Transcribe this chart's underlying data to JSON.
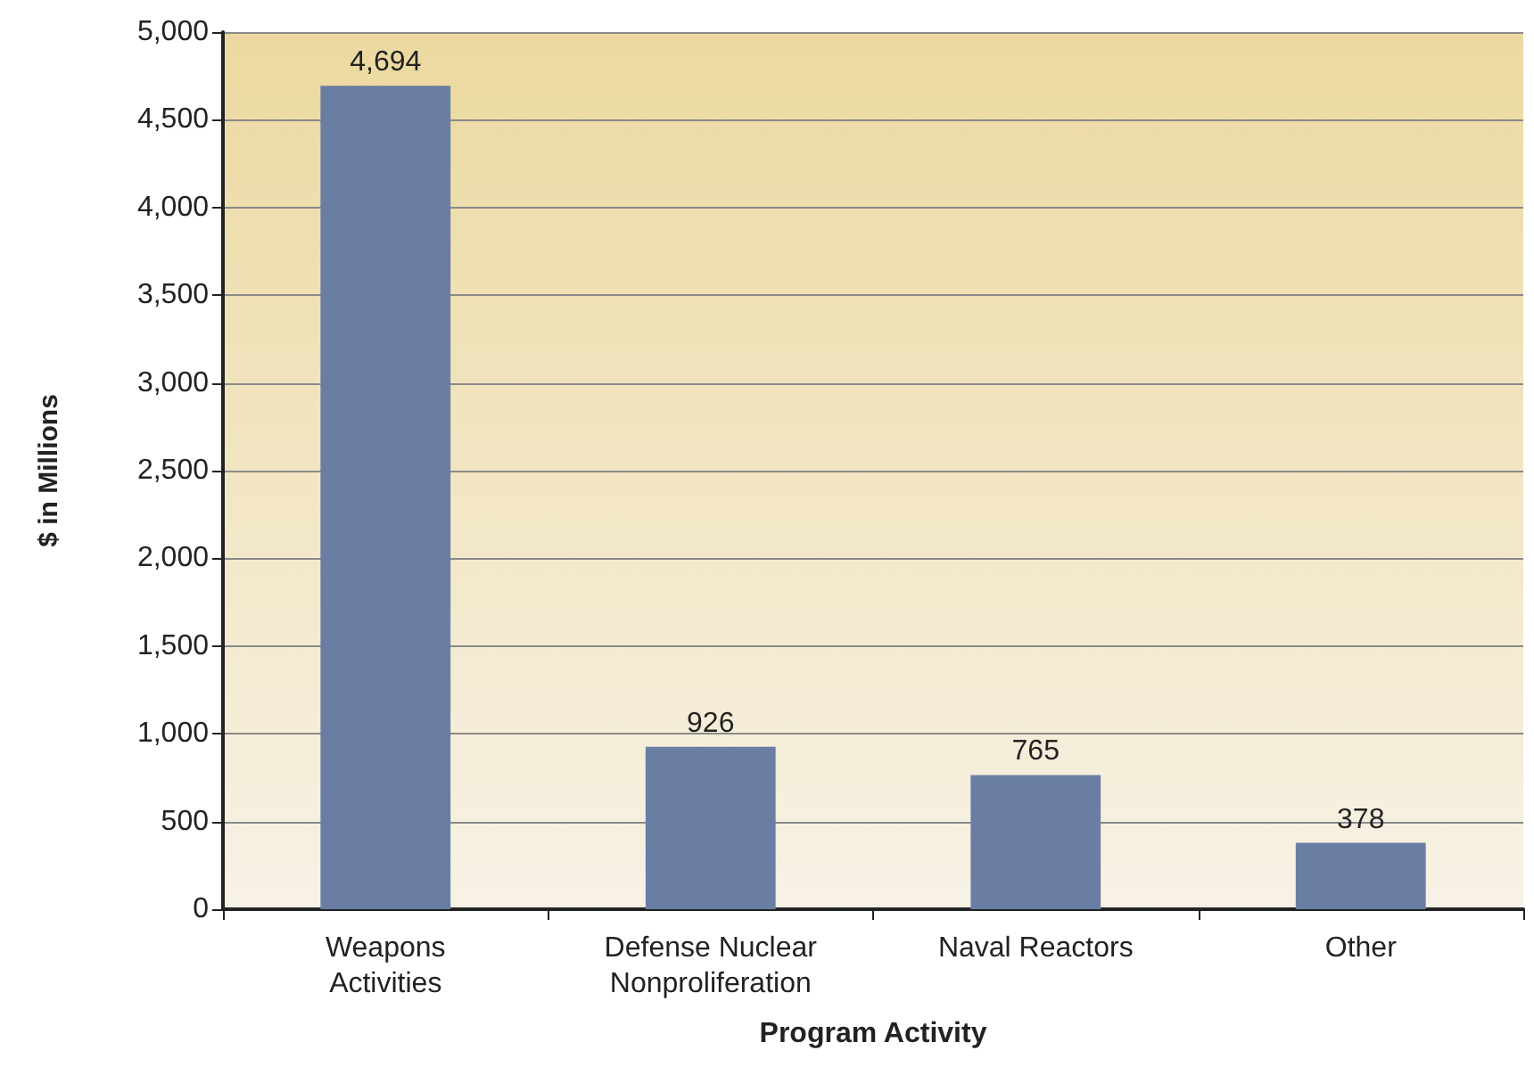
{
  "chart_data": {
    "type": "bar",
    "xlabel": "Program Activity",
    "ylabel": "$ in Millions",
    "categories": [
      "Weapons\nActivities",
      "Defense Nuclear\nNonproliferation",
      "Naval Reactors",
      "Other"
    ],
    "values": [
      4694,
      926,
      765,
      378
    ],
    "value_labels": [
      "4,694",
      "926",
      "765",
      "378"
    ],
    "color": "#6a7ea3",
    "ylim": [
      0,
      5000
    ],
    "yticks": [
      0,
      500,
      {
        "value": 1000,
        "label": "1,000"
      },
      {
        "value": 1500,
        "label": "1,500"
      },
      {
        "value": 2000,
        "label": "2,000"
      },
      {
        "value": 2500,
        "label": "2,500"
      },
      {
        "value": 3000,
        "label": "3,000"
      },
      {
        "value": 3500,
        "label": "3,500"
      },
      {
        "value": 4000,
        "label": "4,000"
      },
      {
        "value": 4500,
        "label": "4,500"
      },
      {
        "value": 5000,
        "label": "5,000"
      }
    ],
    "grid": "y"
  }
}
